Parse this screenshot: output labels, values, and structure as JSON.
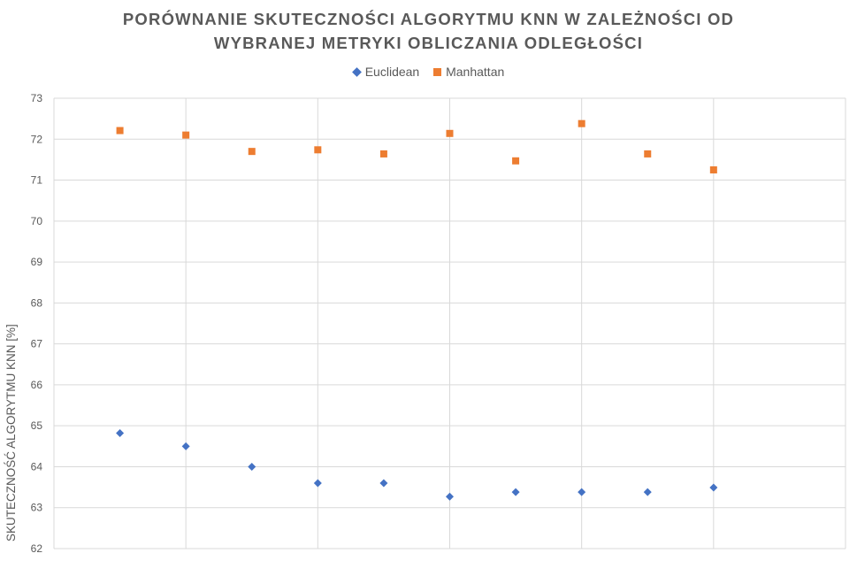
{
  "chart_data": {
    "type": "scatter",
    "title_line1": "PORÓWNANIE SKUTECZNOŚCI ALGORYTMU KNN W ZALEŻNOŚCI OD",
    "title_line2": "WYBRANEJ METRYKI OBLICZANIA ODLEGŁOŚCI",
    "ylabel": "SKUTECZNOŚĆ ALGORYTMU KNN [%]",
    "xlabel": "",
    "ylim": [
      62,
      73
    ],
    "y_ticks": [
      "62",
      "63",
      "64",
      "65",
      "66",
      "67",
      "68",
      "69",
      "70",
      "71",
      "72",
      "73"
    ],
    "xlim": [
      0,
      12
    ],
    "grid": true,
    "legend_position": "top",
    "series": [
      {
        "name": "Euclidean",
        "marker": "diamond",
        "color": "#4472C4",
        "x": [
          1,
          2,
          3,
          4,
          5,
          6,
          7,
          8,
          9,
          10
        ],
        "values": [
          64.82,
          64.5,
          64.0,
          63.6,
          63.6,
          63.27,
          63.38,
          63.38,
          63.38,
          63.49
        ]
      },
      {
        "name": "Manhattan",
        "marker": "square",
        "color": "#ED7D31",
        "x": [
          1,
          2,
          3,
          4,
          5,
          6,
          7,
          8,
          9,
          10
        ],
        "values": [
          72.21,
          72.1,
          71.7,
          71.74,
          71.64,
          72.14,
          71.47,
          72.38,
          71.64,
          71.25
        ]
      }
    ]
  }
}
